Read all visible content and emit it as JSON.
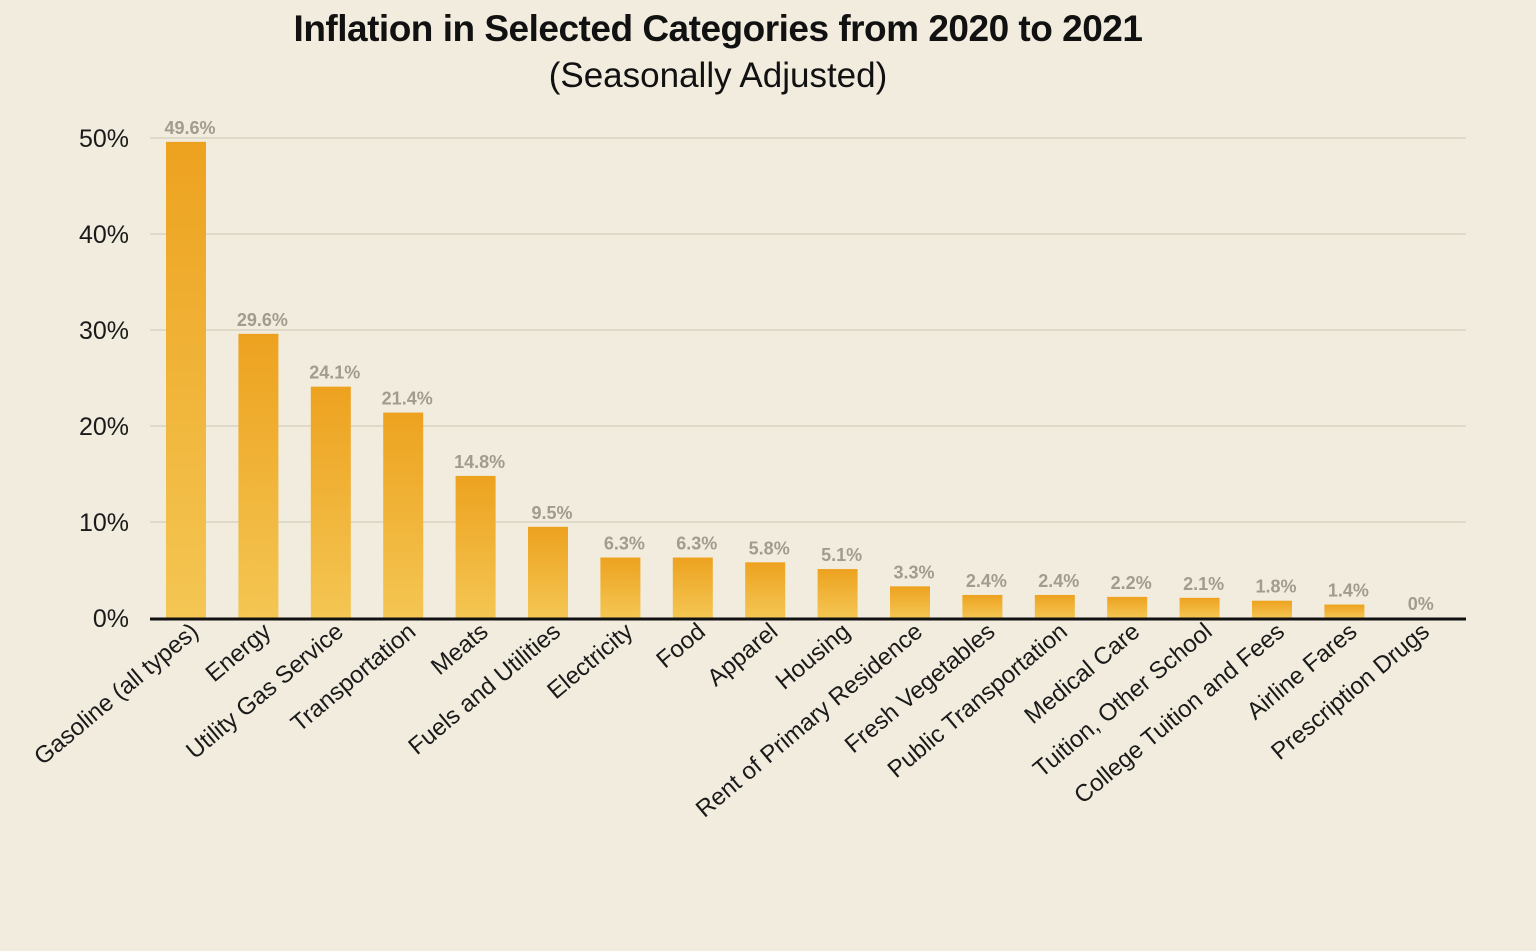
{
  "chart_data": {
    "type": "bar",
    "title": "Inflation in Selected Categories from 2020 to 2021",
    "subtitle": "(Seasonally Adjusted)",
    "xlabel": "",
    "ylabel": "",
    "ylim": [
      0,
      50
    ],
    "yticks": [
      0,
      10,
      20,
      30,
      40,
      50
    ],
    "ytick_labels": [
      "0%",
      "10%",
      "20%",
      "30%",
      "40%",
      "50%"
    ],
    "grid": true,
    "categories": [
      "Gasoline (all types)",
      "Energy",
      "Utility Gas Service",
      "Transportation",
      "Meats",
      "Fuels and Utilities",
      "Electricity",
      "Food",
      "Apparel",
      "Housing",
      "Rent of Primary Residence",
      "Fresh Vegetables",
      "Public Transportation",
      "Medical Care",
      "Tuition, Other School",
      "College Tuition and Fees",
      "Airline Fares",
      "Prescription Drugs"
    ],
    "values": [
      49.6,
      29.6,
      24.1,
      21.4,
      14.8,
      9.5,
      6.3,
      6.3,
      5.8,
      5.1,
      3.3,
      2.4,
      2.4,
      2.2,
      2.1,
      1.8,
      1.4,
      0
    ],
    "value_labels": [
      "49.6%",
      "29.6%",
      "24.1%",
      "21.4%",
      "14.8%",
      "9.5%",
      "6.3%",
      "6.3%",
      "5.8%",
      "5.1%",
      "3.3%",
      "2.4%",
      "2.4%",
      "2.2%",
      "2.1%",
      "1.8%",
      "1.4%",
      "0%"
    ],
    "colors": {
      "bar_top": "#eda21f",
      "bar_bottom": "#f4c653",
      "grid": "#dfd9c8",
      "axis": "#111111",
      "data_label": "#a29c8d"
    }
  }
}
